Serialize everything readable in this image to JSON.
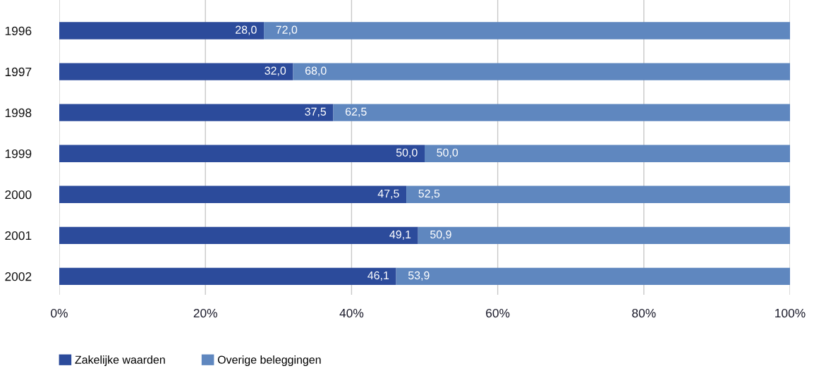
{
  "chart_data": {
    "type": "bar",
    "orientation": "horizontal",
    "stacked": true,
    "categories": [
      "1996",
      "1997",
      "1998",
      "1999",
      "2000",
      "2001",
      "2002"
    ],
    "series": [
      {
        "name": "Zakelijke waarden",
        "color": "#2c4b9b",
        "values": [
          28.0,
          32.0,
          37.5,
          50.0,
          47.5,
          49.1,
          46.1
        ],
        "value_labels": [
          "28,0",
          "32,0",
          "37,5",
          "50,0",
          "47,5",
          "49,1",
          "46,1"
        ]
      },
      {
        "name": "Overige beleggingen",
        "color": "#5f87bf",
        "values": [
          72.0,
          68.0,
          62.5,
          50.0,
          52.5,
          50.9,
          53.9
        ],
        "value_labels": [
          "72,0",
          "68,0",
          "62,5",
          "50,0",
          "52,5",
          "50,9",
          "53,9"
        ]
      }
    ],
    "xlim": [
      0,
      100
    ],
    "xticks": [
      {
        "value": 0,
        "label": "0%"
      },
      {
        "value": 20,
        "label": "20%"
      },
      {
        "value": 40,
        "label": "40%"
      },
      {
        "value": 60,
        "label": "60%"
      },
      {
        "value": 80,
        "label": "80%"
      },
      {
        "value": 100,
        "label": "100%"
      }
    ],
    "grid": "x",
    "legend": "bottom left"
  }
}
